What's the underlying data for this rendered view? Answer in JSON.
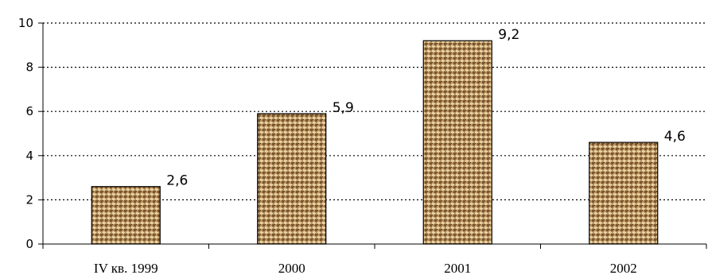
{
  "chart_data": {
    "type": "bar",
    "categories": [
      "IV кв. 1999",
      "2000",
      "2001",
      "2002"
    ],
    "values": [
      2.6,
      5.9,
      9.2,
      4.6
    ],
    "value_labels": [
      "2,6",
      "5,9",
      "9,2",
      "4,6"
    ],
    "title": "",
    "xlabel": "",
    "ylabel": "",
    "ylim": [
      0,
      10
    ],
    "yticks": [
      "0",
      "2",
      "4",
      "6",
      "8",
      "10"
    ],
    "grid": "horizontal dotted",
    "legend": "none",
    "bar_fill": "#b8925e"
  }
}
